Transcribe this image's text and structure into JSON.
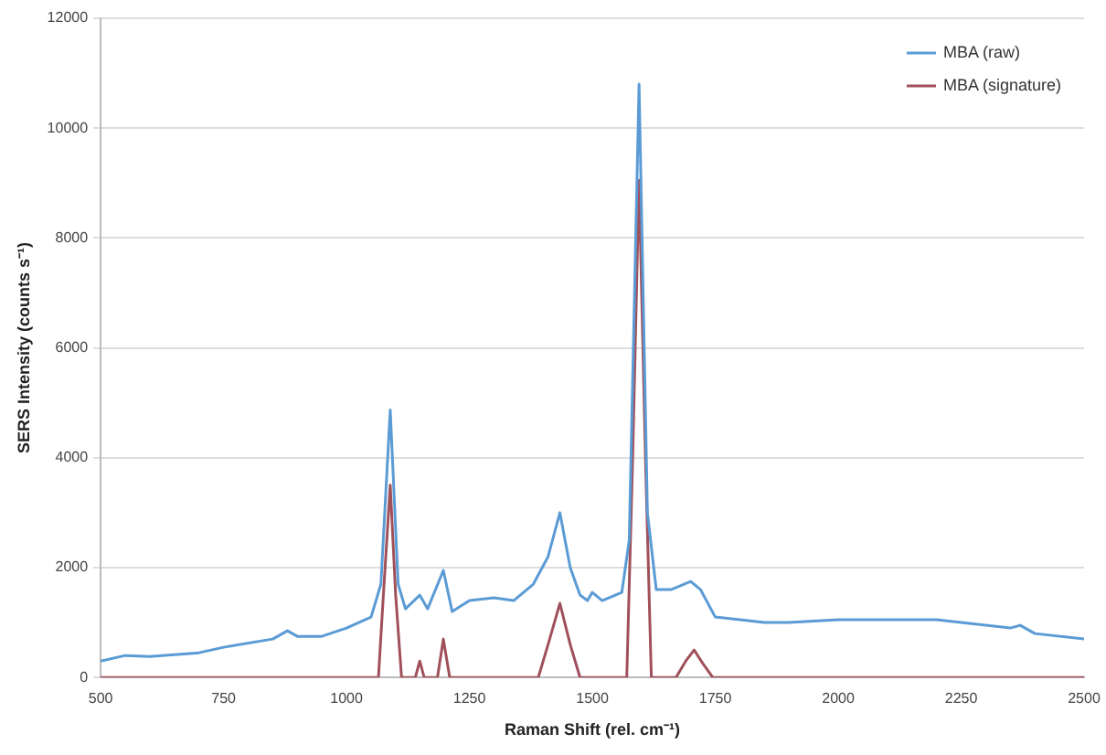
{
  "chart_data": {
    "type": "line",
    "xlabel": "Raman Shift (rel. cm⁻¹)",
    "ylabel": "SERS Intensity (counts s⁻¹)",
    "xlim": [
      500,
      2500
    ],
    "xticks": [
      500,
      750,
      1000,
      1250,
      1500,
      1750,
      2000,
      2250,
      2500
    ],
    "ylim": [
      0,
      12000
    ],
    "yticks": [
      0,
      2000,
      4000,
      6000,
      8000,
      10000,
      12000
    ],
    "grid": "y",
    "legend": "top right",
    "marker": "none",
    "line_style": "solid",
    "series": [
      {
        "name": "MBA (raw)",
        "color": "#5b9bd5",
        "x": [
          500,
          550,
          600,
          700,
          750,
          850,
          880,
          900,
          950,
          1000,
          1050,
          1070,
          1089,
          1105,
          1120,
          1149,
          1165,
          1197,
          1215,
          1250,
          1300,
          1340,
          1380,
          1410,
          1434,
          1455,
          1475,
          1490,
          1500,
          1520,
          1560,
          1575,
          1595,
          1612,
          1630,
          1660,
          1700,
          1720,
          1750,
          1800,
          1850,
          1900,
          2000,
          2100,
          2200,
          2300,
          2350,
          2370,
          2400,
          2500
        ],
        "values": [
          300,
          400,
          380,
          450,
          550,
          700,
          850,
          750,
          750,
          900,
          1100,
          1700,
          4870,
          1700,
          1250,
          1500,
          1250,
          1950,
          1200,
          1400,
          1450,
          1400,
          1700,
          2200,
          3000,
          2000,
          1500,
          1400,
          1550,
          1400,
          1550,
          2500,
          10800,
          3000,
          1600,
          1600,
          1750,
          1600,
          1100,
          1050,
          1000,
          1000,
          1050,
          1050,
          1050,
          950,
          900,
          950,
          800,
          700
        ]
      },
      {
        "name": "MBA (signature)",
        "color": "#a0505a",
        "x": [
          500,
          1065,
          1075,
          1089,
          1100,
          1112,
          1140,
          1149,
          1158,
          1185,
          1197,
          1210,
          1390,
          1410,
          1434,
          1455,
          1475,
          1570,
          1582,
          1595,
          1608,
          1620,
          1670,
          1690,
          1707,
          1725,
          1745,
          2500
        ],
        "values": [
          0,
          0,
          1500,
          3500,
          1500,
          0,
          0,
          300,
          0,
          0,
          700,
          0,
          0,
          600,
          1350,
          600,
          0,
          0,
          4000,
          9050,
          4000,
          0,
          0,
          300,
          500,
          250,
          0,
          0
        ]
      }
    ]
  }
}
